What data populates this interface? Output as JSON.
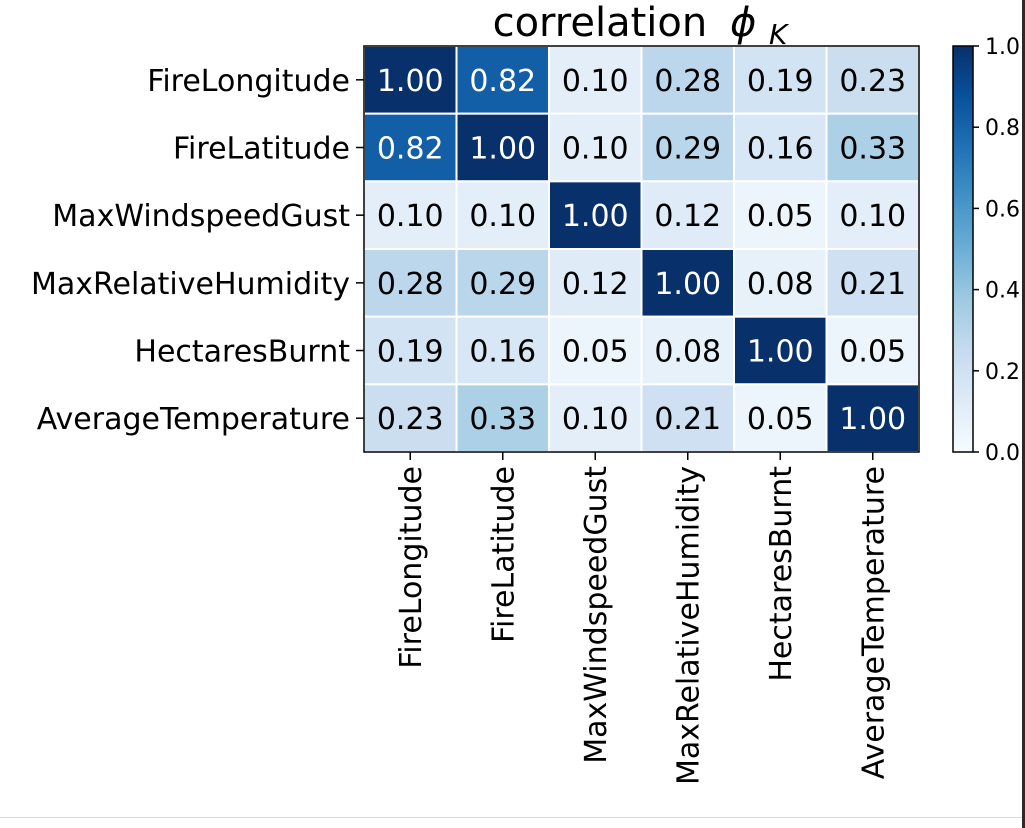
{
  "chart_data": {
    "type": "heatmap",
    "title": "correlation",
    "title_symbol": "ϕ",
    "title_subscript": "K",
    "rows": [
      "FireLongitude",
      "FireLatitude",
      "MaxWindspeedGust",
      "MaxRelativeHumidity",
      "HectaresBurnt",
      "AverageTemperature"
    ],
    "columns": [
      "FireLongitude",
      "FireLatitude",
      "MaxWindspeedGust",
      "MaxRelativeHumidity",
      "HectaresBurnt",
      "AverageTemperature"
    ],
    "values": [
      [
        1.0,
        0.82,
        0.1,
        0.28,
        0.19,
        0.23
      ],
      [
        0.82,
        1.0,
        0.1,
        0.29,
        0.16,
        0.33
      ],
      [
        0.1,
        0.1,
        1.0,
        0.12,
        0.05,
        0.1
      ],
      [
        0.28,
        0.29,
        0.12,
        1.0,
        0.08,
        0.21
      ],
      [
        0.19,
        0.16,
        0.05,
        0.08,
        1.0,
        0.05
      ],
      [
        0.23,
        0.33,
        0.1,
        0.21,
        0.05,
        1.0
      ]
    ],
    "value_format_decimals": 2,
    "colormap": "Blues",
    "colormap_stops": [
      "#f7fbff",
      "#deebf7",
      "#c6dbef",
      "#9ecae1",
      "#6baed6",
      "#4292c6",
      "#2171b5",
      "#08519c",
      "#08306b"
    ],
    "vmin": 0.0,
    "vmax": 1.0,
    "colorbar": {
      "ticks": [
        0.0,
        0.2,
        0.4,
        0.6,
        0.8,
        1.0
      ],
      "tick_labels": [
        "0.0",
        "0.2",
        "0.4",
        "0.6",
        "0.8",
        "1.0"
      ]
    },
    "grid": true
  }
}
